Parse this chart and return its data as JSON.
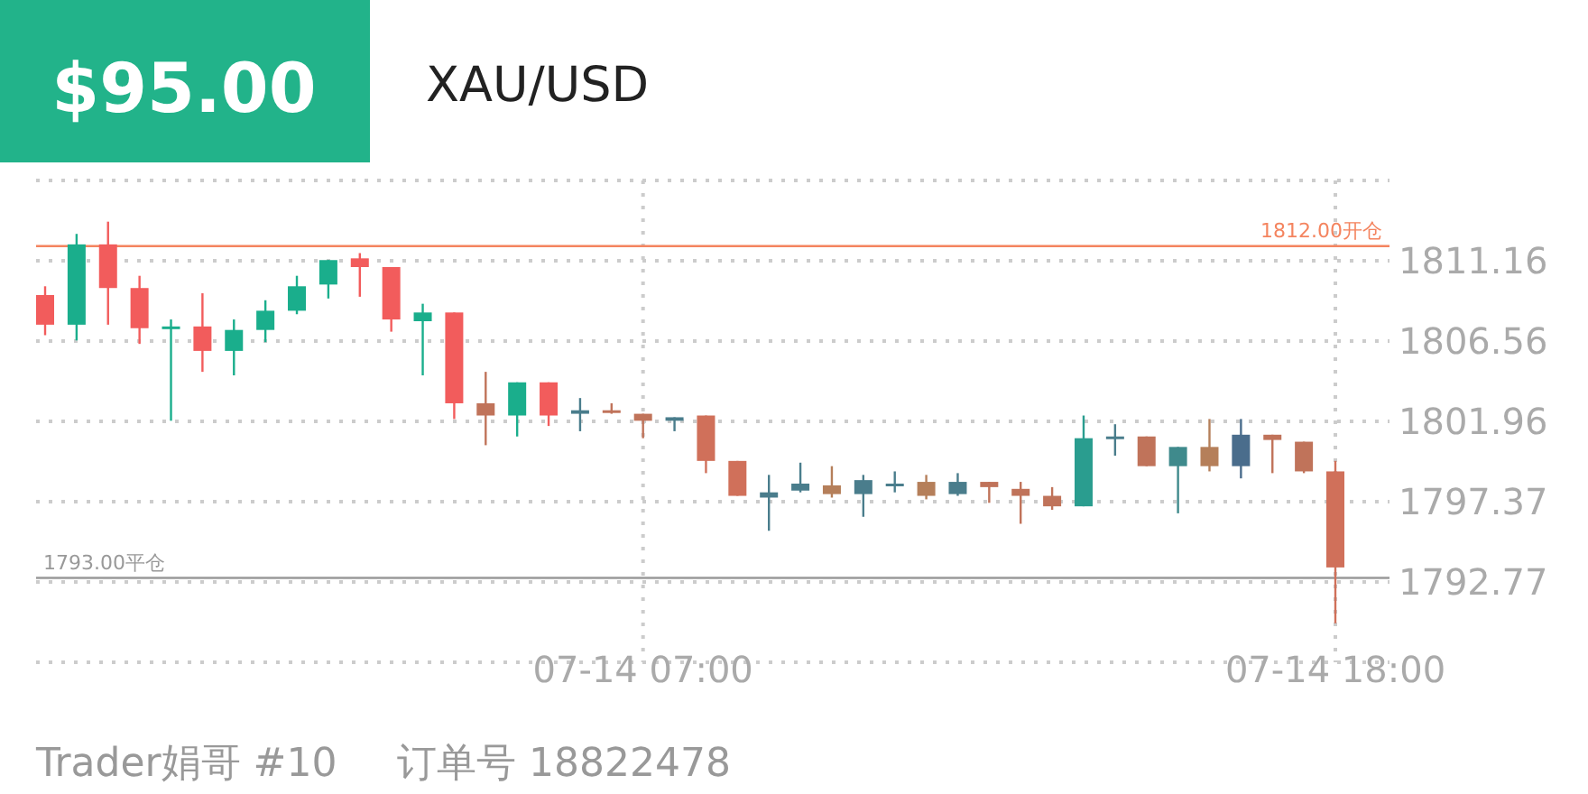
{
  "chart_data": {
    "type": "candlestick",
    "title": "XAU/USD",
    "annotations": [
      "$95.00",
      "Trader娟哥 #10",
      "订单号 18822478"
    ],
    "categories": [
      null,
      null,
      null,
      null,
      null,
      null,
      null,
      null,
      null,
      null,
      null,
      null,
      null,
      null,
      null,
      null,
      null,
      null,
      null,
      "07-14 07:00",
      null,
      null,
      null,
      null,
      null,
      null,
      null,
      null,
      null,
      null,
      null,
      null,
      null,
      null,
      null,
      null,
      null,
      null,
      null,
      null,
      null,
      "07-14 18:00"
    ],
    "ohlc": [
      [
        1809.2,
        1809.7,
        1806.9,
        1807.5
      ],
      [
        1807.5,
        1812.7,
        1806.6,
        1812.1
      ],
      [
        1812.1,
        1813.4,
        1807.5,
        1809.6
      ],
      [
        1809.6,
        1810.3,
        1806.4,
        1807.3
      ],
      [
        1807.3,
        1807.8,
        1802.0,
        1807.4
      ],
      [
        1807.4,
        1809.3,
        1804.8,
        1806.0
      ],
      [
        1806.0,
        1807.8,
        1804.6,
        1807.2
      ],
      [
        1807.2,
        1808.9,
        1806.5,
        1808.3
      ],
      [
        1808.3,
        1810.3,
        1808.1,
        1809.7
      ],
      [
        1809.8,
        1811.2,
        1809.0,
        1811.2
      ],
      [
        1811.3,
        1811.6,
        1809.1,
        1810.8
      ],
      [
        1810.8,
        1810.8,
        1807.1,
        1807.8
      ],
      [
        1807.7,
        1808.7,
        1804.6,
        1808.2
      ],
      [
        1808.2,
        1808.2,
        1802.1,
        1803.0
      ],
      [
        1803.0,
        1804.8,
        1800.6,
        1802.3
      ],
      [
        1802.3,
        1804.2,
        1801.1,
        1804.2
      ],
      [
        1804.2,
        1804.2,
        1801.7,
        1802.3
      ],
      [
        1802.4,
        1803.3,
        1801.4,
        1802.6
      ],
      [
        1802.6,
        1803.0,
        1802.4,
        1802.5
      ],
      [
        1802.4,
        1802.4,
        1801.0,
        1802.0
      ],
      [
        1802.0,
        1802.2,
        1801.4,
        1802.2
      ],
      [
        1802.3,
        1802.3,
        1799.0,
        1799.7
      ],
      [
        1799.7,
        1799.7,
        1797.7,
        1797.7
      ],
      [
        1797.6,
        1798.9,
        1795.7,
        1797.9
      ],
      [
        1798.0,
        1799.6,
        1797.9,
        1798.4
      ],
      [
        1798.3,
        1799.4,
        1797.6,
        1797.8
      ],
      [
        1797.8,
        1798.9,
        1796.5,
        1798.6
      ],
      [
        1798.3,
        1799.1,
        1797.9,
        1798.4
      ],
      [
        1798.5,
        1798.9,
        1797.5,
        1797.7
      ],
      [
        1797.8,
        1799.0,
        1797.7,
        1798.5
      ],
      [
        1798.5,
        1798.5,
        1797.3,
        1798.2
      ],
      [
        1798.1,
        1798.5,
        1796.1,
        1797.7
      ],
      [
        1797.7,
        1798.2,
        1796.9,
        1797.1
      ],
      [
        1797.1,
        1802.3,
        1797.1,
        1801.0
      ],
      [
        1801.0,
        1801.8,
        1800.0,
        1801.1
      ],
      [
        1801.1,
        1801.1,
        1799.4,
        1799.4
      ],
      [
        1799.4,
        1800.5,
        1796.7,
        1800.5
      ],
      [
        1800.5,
        1802.1,
        1799.1,
        1799.4
      ],
      [
        1799.4,
        1802.1,
        1798.7,
        1801.2
      ],
      [
        1801.2,
        1801.2,
        1799.0,
        1800.9
      ],
      [
        1800.8,
        1800.8,
        1799.0,
        1799.1
      ],
      [
        1799.1,
        1799.7,
        1790.4,
        1793.6
      ]
    ],
    "colors": [
      "#f25c5c",
      "#1aae8c",
      "#f25c5c",
      "#f25c5c",
      "#1aae8c",
      "#f25c5c",
      "#1aae8c",
      "#1aae8c",
      "#1aae8c",
      "#1aae8c",
      "#f25c5c",
      "#f25c5c",
      "#1aae8c",
      "#f25c5c",
      "#c0735a",
      "#1aae8c",
      "#f25c5c",
      "#4a7d8c",
      "#c0735a",
      "#c0735a",
      "#4a7d8c",
      "#d0705a",
      "#d0705a",
      "#4a7d8c",
      "#4a7d8c",
      "#b57f5a",
      "#4a7d8c",
      "#4a7d8c",
      "#b57f5a",
      "#4a7d8c",
      "#c0735a",
      "#c0735a",
      "#c0735a",
      "#2a9d8f",
      "#4a7d8c",
      "#c0735a",
      "#3f8a8c",
      "#b57f5a",
      "#4a6d8c",
      "#c0735a",
      "#c0735a",
      "#d0705a"
    ],
    "ylim": [
      1788.17,
      1815.76
    ],
    "yticks": [
      1811.16,
      1806.56,
      1801.96,
      1797.37,
      1792.77
    ],
    "ref_lines": [
      {
        "axis": "y",
        "value": 1812.0,
        "label": "1812.00开仓",
        "color": "#f4845f"
      },
      {
        "axis": "y",
        "value": 1793.0,
        "label": "1793.00平仓",
        "color": "#999999"
      }
    ],
    "grid": true
  }
}
